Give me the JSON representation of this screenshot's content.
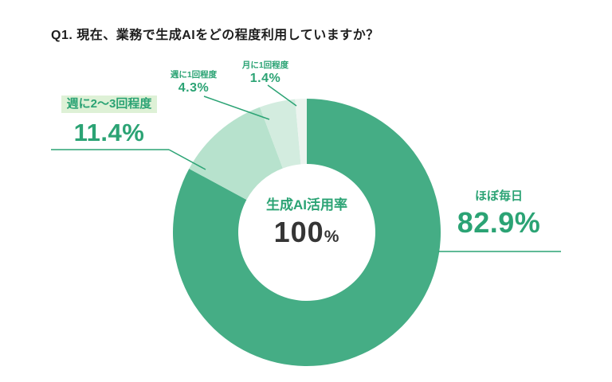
{
  "title": "Q1. 現在、業務で生成AIをどの程度利用していますか？",
  "chart_data": {
    "type": "pie",
    "subtype": "donut",
    "title": "Q1. 現在、業務で生成AIをどの程度利用していますか？",
    "categories": [
      "ほぼ毎日",
      "週に2〜3回程度",
      "週に1回程度",
      "月に1回程度"
    ],
    "values": [
      82.9,
      11.4,
      4.3,
      1.4
    ],
    "unit": "%",
    "colors": [
      "#45ad85",
      "#b7e2cd",
      "#d3ecdf",
      "#ecf4ef"
    ],
    "center_label": "生成AI活用率",
    "center_value": "100",
    "start_angle_deg": 0,
    "direction": "clockwise",
    "legend": "none",
    "accent_color": "#2ba374",
    "highlight_bg": "#def1d6"
  }
}
